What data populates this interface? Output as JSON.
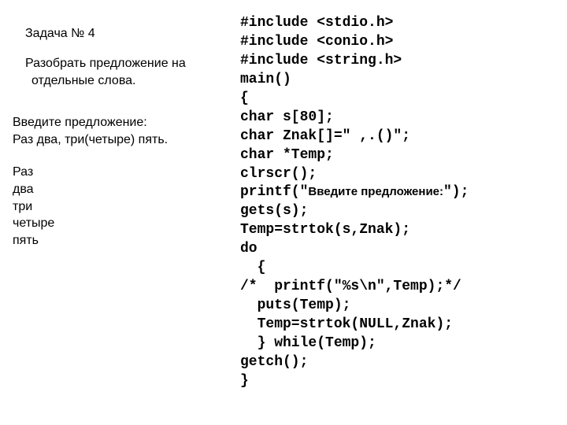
{
  "left": {
    "title": "Задача № 4",
    "desc_line1": "Разобрать предложение на",
    "desc_line2": "отдельные слова.",
    "io_line1": "Введите предложение:",
    "io_line2": "Раз два, три(четыре) пять.",
    "out1": "Раз",
    "out2": "два",
    "out3": "три",
    "out4": "четыре",
    "out5": "пять"
  },
  "code": {
    "l01a": "#include <stdio.h>",
    "l02a": "#include <conio.h>",
    "l03a": "#include <string.h>",
    "l04": "main()",
    "l05": "{",
    "l06": "char s[80];",
    "l07": "char Znak[]=\" ,.()\";",
    "l08": "char *Temp;",
    "l09": "clrscr();",
    "l10a": "printf(\"",
    "l10b": "Введите предложение:",
    "l10c": "\");",
    "l11": "gets(s);",
    "l12": "Temp=strtok(s,Znak);",
    "l13": "do",
    "l14": "  {",
    "l15": "/*  printf(\"%s\\n\",Temp);*/",
    "l16": "  puts(Temp);",
    "l17": "  Temp=strtok(NULL,Znak);",
    "l18": "  } while(Temp);",
    "l19": "getch();",
    "l20": "}"
  }
}
